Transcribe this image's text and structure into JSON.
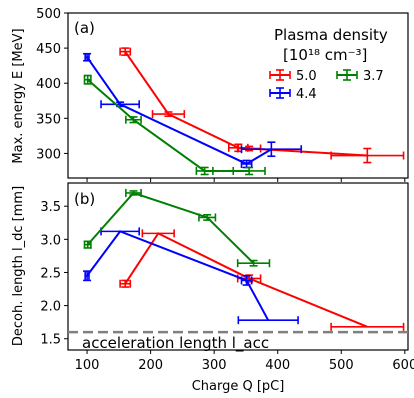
{
  "chart_data": [
    {
      "type": "line",
      "panel_label": "(a)",
      "ylabel": "Max. energy E [MeV]",
      "ylim": [
        265,
        500
      ],
      "yticks": [
        300,
        350,
        400,
        450,
        500
      ],
      "xlim": [
        70,
        605
      ],
      "grid": false,
      "legend": {
        "title_line1": "Plasma density",
        "title_line2": "[10¹⁸ cm⁻³]",
        "placement": "top-right",
        "entries": [
          "5.0",
          "3.7",
          "4.4"
        ]
      },
      "series": [
        {
          "name": "5.0",
          "color": "#ff0000",
          "points": [
            {
              "x": 160,
              "y": 445,
              "xerr": 8,
              "yerr": 5
            },
            {
              "x": 228,
              "y": 356,
              "xerr": 25,
              "yerr": 3
            },
            {
              "x": 338,
              "y": 308,
              "xerr": 15,
              "yerr": 5
            },
            {
              "x": 355,
              "y": 307,
              "xerr": 18,
              "yerr": 3
            },
            {
              "x": 541,
              "y": 297,
              "xerr": 57,
              "yerr": 10
            }
          ]
        },
        {
          "name": "4.4",
          "color": "#0000ff",
          "points": [
            {
              "x": 100,
              "y": 437,
              "xerr": 3,
              "yerr": 5
            },
            {
              "x": 152,
              "y": 370,
              "xerr": 30,
              "yerr": 3
            },
            {
              "x": 351,
              "y": 285,
              "xerr": 8,
              "yerr": 5
            },
            {
              "x": 390,
              "y": 306,
              "xerr": 47,
              "yerr": 10
            }
          ]
        },
        {
          "name": "3.7",
          "color": "#008000",
          "points": [
            {
              "x": 101,
              "y": 405,
              "xerr": 5,
              "yerr": 6
            },
            {
              "x": 173,
              "y": 348,
              "xerr": 12,
              "yerr": 4
            },
            {
              "x": 285,
              "y": 275,
              "xerr": 13,
              "yerr": 5
            },
            {
              "x": 355,
              "y": 275,
              "xerr": 25,
              "yerr": 5
            }
          ]
        }
      ]
    },
    {
      "type": "line",
      "panel_label": "(b)",
      "ylabel": "Decoh. length l_dc [mm]",
      "ylim": [
        1.33,
        3.85
      ],
      "yticks": [
        1.5,
        2.0,
        2.5,
        3.0,
        3.5
      ],
      "xlim": [
        70,
        605
      ],
      "xticks": [
        100,
        200,
        300,
        400,
        500,
        600
      ],
      "xticklabels": [
        "100",
        "200",
        "300",
        "400",
        "500",
        "600"
      ],
      "xlabel": "Charge Q [pC]",
      "grid": false,
      "reference_line": {
        "y": 1.6,
        "label": "acceleration length l_acc",
        "color": "#808080"
      },
      "series": [
        {
          "name": "5.0",
          "color": "#ff0000",
          "points": [
            {
              "x": 160,
              "y": 2.33,
              "xerr": 8,
              "yerr": 0.05
            },
            {
              "x": 212,
              "y": 3.09,
              "xerr": 25,
              "yerr": 0.0
            },
            {
              "x": 355,
              "y": 2.41,
              "xerr": 18,
              "yerr": 0.05
            },
            {
              "x": 541,
              "y": 1.68,
              "xerr": 57,
              "yerr": 0.0
            }
          ]
        },
        {
          "name": "4.4",
          "color": "#0000ff",
          "points": [
            {
              "x": 100,
              "y": 2.45,
              "xerr": 3,
              "yerr": 0.07
            },
            {
              "x": 152,
              "y": 3.12,
              "xerr": 30,
              "yerr": 0.0
            },
            {
              "x": 351,
              "y": 2.38,
              "xerr": 8,
              "yerr": 0.07
            },
            {
              "x": 385,
              "y": 1.78,
              "xerr": 47,
              "yerr": 0.0
            }
          ]
        },
        {
          "name": "3.7",
          "color": "#008000",
          "points": [
            {
              "x": 101,
              "y": 2.92,
              "xerr": 5,
              "yerr": 0.05
            },
            {
              "x": 173,
              "y": 3.7,
              "xerr": 12,
              "yerr": 0.03
            },
            {
              "x": 289,
              "y": 3.33,
              "xerr": 13,
              "yerr": 0.04
            },
            {
              "x": 362,
              "y": 2.64,
              "xerr": 25,
              "yerr": 0.04
            }
          ]
        }
      ]
    }
  ]
}
